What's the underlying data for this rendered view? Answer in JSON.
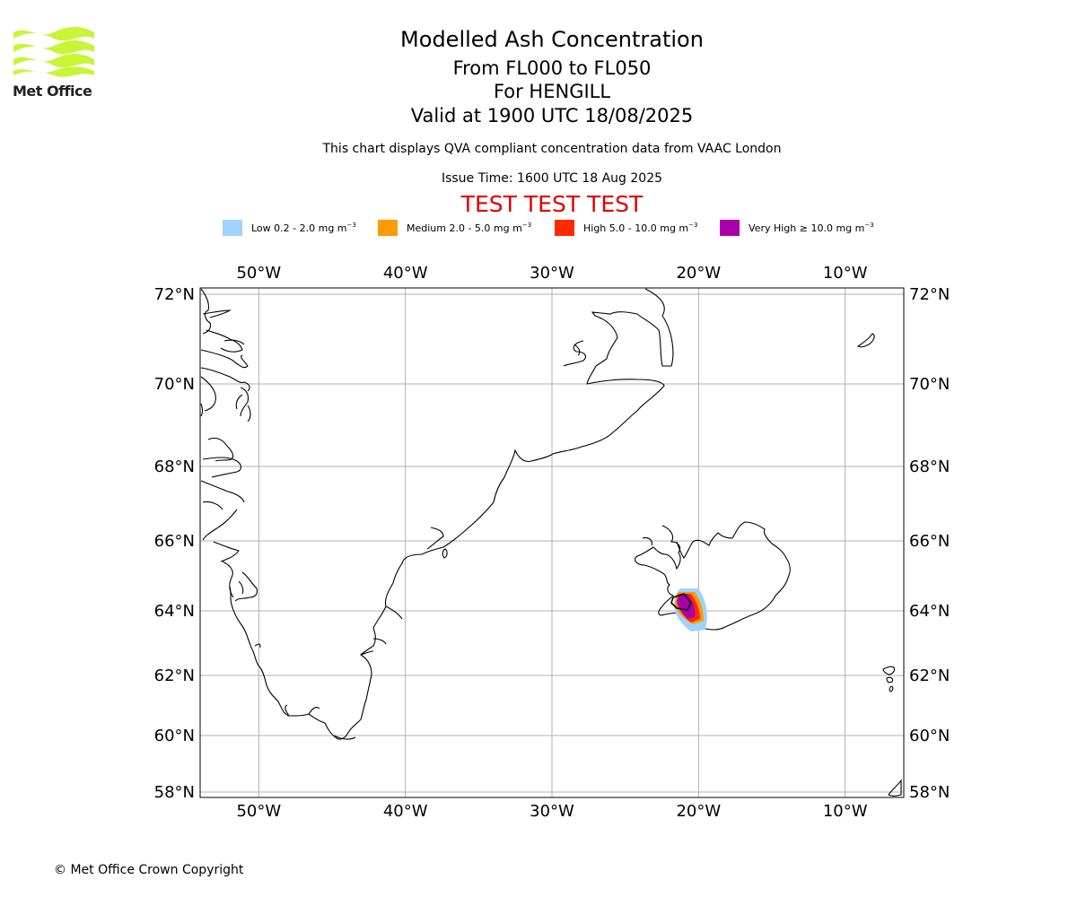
{
  "logo": {
    "name": "Met Office",
    "color": "#c8f535"
  },
  "header": {
    "title": "Modelled Ash Concentration",
    "levels": "From FL000 to FL050",
    "volcano": "For HENGILL",
    "valid": "Valid at 1900 UTC 18/08/2025",
    "description": "This chart displays QVA compliant concentration data from VAAC London",
    "issue_time": "Issue Time: 1600 UTC 18 Aug 2025",
    "test_banner": "TEST TEST TEST"
  },
  "legend": [
    {
      "label": "Low 0.2 - 2.0 mg m",
      "unit_exp": "−3",
      "color": "#a0d2fa"
    },
    {
      "label": "Medium 2.0 - 5.0 mg m",
      "unit_exp": "−3",
      "color": "#ff9a00"
    },
    {
      "label": "High 5.0 - 10.0 mg m",
      "unit_exp": "−3",
      "color": "#ff2a00"
    },
    {
      "label": "Very High  ≥  10.0 mg m",
      "unit_exp": "−3",
      "color": "#aa00aa"
    }
  ],
  "map": {
    "lon_range": [
      -54,
      -6
    ],
    "lat_range": [
      58,
      72
    ],
    "lon_ticks": [
      {
        "value": -50,
        "label": "50°W"
      },
      {
        "value": -40,
        "label": "40°W"
      },
      {
        "value": -30,
        "label": "30°W"
      },
      {
        "value": -20,
        "label": "20°W"
      },
      {
        "value": -10,
        "label": "10°W"
      }
    ],
    "lat_ticks": [
      {
        "value": 72,
        "label": "72°N"
      },
      {
        "value": 70,
        "label": "70°N"
      },
      {
        "value": 68,
        "label": "68°N"
      },
      {
        "value": 66,
        "label": "66°N"
      },
      {
        "value": 64,
        "label": "64°N"
      },
      {
        "value": 62,
        "label": "62°N"
      },
      {
        "value": 60,
        "label": "60°N"
      },
      {
        "value": 58,
        "label": "58°N"
      }
    ],
    "grid": true,
    "ash_plume": {
      "center_lon": -21.3,
      "center_lat": 64.05,
      "levels": [
        "Low",
        "Medium",
        "High",
        "Very High"
      ]
    }
  },
  "footer": {
    "copyright": "© Met Office Crown Copyright"
  }
}
